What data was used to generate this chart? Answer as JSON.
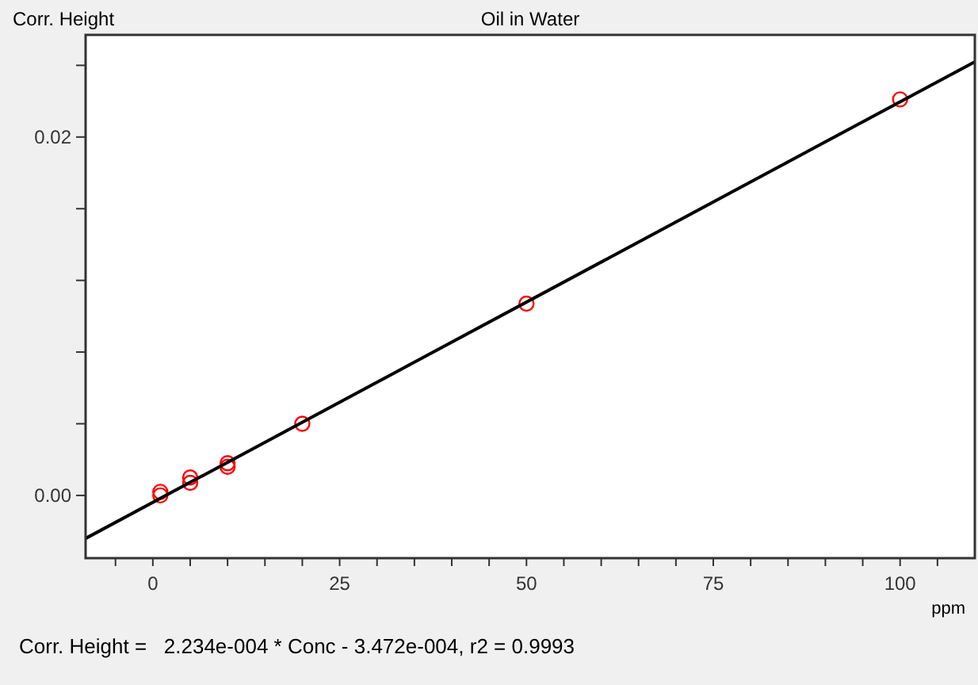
{
  "chart_data": {
    "type": "scatter",
    "title": "Oil in Water",
    "xlabel": "ppm",
    "ylabel": "Corr. Height",
    "annotations": [
      "Corr. Height =   2.234e-004 * Conc - 3.472e-004, r2 = 0.9993"
    ],
    "xlim": [
      -9,
      110
    ],
    "ylim": [
      -0.0035,
      0.0257
    ],
    "xticks": [
      {
        "value": -5,
        "label": null
      },
      0,
      {
        "value": 5,
        "label": null
      },
      {
        "value": 10,
        "label": null
      },
      {
        "value": 15,
        "label": null
      },
      {
        "value": 20,
        "label": null
      },
      25,
      {
        "value": 30,
        "label": null
      },
      {
        "value": 35,
        "label": null
      },
      {
        "value": 40,
        "label": null
      },
      {
        "value": 45,
        "label": null
      },
      50,
      {
        "value": 55,
        "label": null
      },
      {
        "value": 60,
        "label": null
      },
      {
        "value": 65,
        "label": null
      },
      {
        "value": 70,
        "label": null
      },
      75,
      {
        "value": 80,
        "label": null
      },
      {
        "value": 85,
        "label": null
      },
      {
        "value": 90,
        "label": null
      },
      {
        "value": 95,
        "label": null
      },
      100,
      {
        "value": 105,
        "label": null
      }
    ],
    "yticks": [
      {
        "value": 0,
        "label": "0.00"
      },
      {
        "value": 0.004,
        "label": null
      },
      {
        "value": 0.008,
        "label": null
      },
      {
        "value": 0.012,
        "label": null
      },
      {
        "value": 0.016,
        "label": null
      },
      0.02,
      {
        "value": 0.024,
        "label": null
      }
    ],
    "grid": false,
    "series": [
      {
        "marker": "circle",
        "color": "#ff0000",
        "x": [
          1,
          1,
          5,
          5,
          10,
          10,
          20,
          50,
          100
        ],
        "values": [
          0.0002,
          0.0,
          0.001,
          0.0007,
          0.0018,
          0.0016,
          0.004,
          0.0107,
          0.0221
        ]
      },
      {
        "type": "line",
        "color": "#000000",
        "x": [
          -9,
          110
        ],
        "values": [
          -0.0024,
          0.0242
        ],
        "line_style": "solid"
      }
    ]
  }
}
